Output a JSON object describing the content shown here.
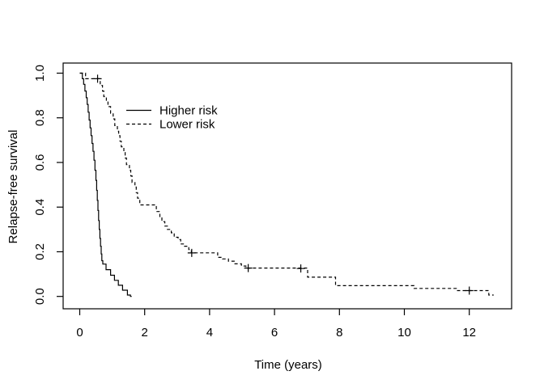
{
  "figure": {
    "background_color": "#ffffff",
    "line_color": "#000000"
  },
  "chart_data": {
    "type": "line",
    "subtype": "kaplan-meier-step-survival",
    "title": "",
    "xlabel": "Time (years)",
    "ylabel": "Relapse-free survival",
    "xlim": [
      0,
      13.3
    ],
    "ylim": [
      0,
      1.0
    ],
    "grid": false,
    "legend_position": "upper-left-inside",
    "x_ticks": {
      "values": [
        0,
        2,
        4,
        6,
        8,
        10,
        12
      ],
      "labels": [
        "0",
        "2",
        "4",
        "6",
        "8",
        "10",
        "12"
      ]
    },
    "y_ticks": {
      "values": [
        0.0,
        0.2,
        0.4,
        0.6,
        0.8,
        1.0
      ],
      "labels": [
        "0.0",
        "0.2",
        "0.4",
        "0.6",
        "0.8",
        "1.0"
      ]
    },
    "series": [
      {
        "name": "Higher risk",
        "line_style": "solid",
        "color": "#000000",
        "points": [
          [
            0,
            1.0
          ],
          [
            0.08,
            0.975
          ],
          [
            0.12,
            0.95
          ],
          [
            0.16,
            0.92
          ],
          [
            0.2,
            0.89
          ],
          [
            0.23,
            0.86
          ],
          [
            0.26,
            0.825
          ],
          [
            0.29,
            0.79
          ],
          [
            0.32,
            0.755
          ],
          [
            0.35,
            0.72
          ],
          [
            0.38,
            0.685
          ],
          [
            0.41,
            0.65
          ],
          [
            0.44,
            0.61
          ],
          [
            0.47,
            0.565
          ],
          [
            0.5,
            0.52
          ],
          [
            0.52,
            0.475
          ],
          [
            0.54,
            0.43
          ],
          [
            0.56,
            0.385
          ],
          [
            0.58,
            0.34
          ],
          [
            0.6,
            0.3
          ],
          [
            0.62,
            0.26
          ],
          [
            0.64,
            0.225
          ],
          [
            0.66,
            0.19
          ],
          [
            0.68,
            0.16
          ],
          [
            0.71,
            0.145
          ],
          [
            0.81,
            0.12
          ],
          [
            0.95,
            0.095
          ],
          [
            1.07,
            0.072
          ],
          [
            1.19,
            0.05
          ],
          [
            1.32,
            0.028
          ],
          [
            1.47,
            0.006
          ],
          [
            1.56,
            0.0
          ],
          [
            1.6,
            0.0
          ]
        ],
        "censor_marks": []
      },
      {
        "name": "Lower risk",
        "line_style": "dashed",
        "color": "#000000",
        "points": [
          [
            0,
            1.0
          ],
          [
            0.18,
            0.975
          ],
          [
            0.63,
            0.945
          ],
          [
            0.7,
            0.92
          ],
          [
            0.74,
            0.895
          ],
          [
            0.82,
            0.875
          ],
          [
            0.87,
            0.85
          ],
          [
            0.95,
            0.82
          ],
          [
            1.03,
            0.795
          ],
          [
            1.08,
            0.765
          ],
          [
            1.16,
            0.74
          ],
          [
            1.2,
            0.72
          ],
          [
            1.24,
            0.695
          ],
          [
            1.28,
            0.67
          ],
          [
            1.36,
            0.645
          ],
          [
            1.4,
            0.62
          ],
          [
            1.44,
            0.59
          ],
          [
            1.53,
            0.565
          ],
          [
            1.57,
            0.54
          ],
          [
            1.61,
            0.51
          ],
          [
            1.7,
            0.49
          ],
          [
            1.74,
            0.465
          ],
          [
            1.78,
            0.44
          ],
          [
            1.85,
            0.41
          ],
          [
            2.36,
            0.38
          ],
          [
            2.47,
            0.355
          ],
          [
            2.53,
            0.335
          ],
          [
            2.62,
            0.315
          ],
          [
            2.7,
            0.3
          ],
          [
            2.82,
            0.285
          ],
          [
            2.91,
            0.265
          ],
          [
            3.03,
            0.255
          ],
          [
            3.11,
            0.235
          ],
          [
            3.23,
            0.225
          ],
          [
            3.36,
            0.21
          ],
          [
            3.44,
            0.195
          ],
          [
            4.25,
            0.175
          ],
          [
            4.4,
            0.168
          ],
          [
            4.58,
            0.158
          ],
          [
            4.78,
            0.146
          ],
          [
            4.98,
            0.136
          ],
          [
            5.12,
            0.127
          ],
          [
            7.02,
            0.086
          ],
          [
            7.88,
            0.048
          ],
          [
            10.3,
            0.036
          ],
          [
            11.6,
            0.026
          ],
          [
            12.6,
            0.006
          ],
          [
            12.75,
            0.006
          ]
        ],
        "censor_marks": [
          [
            0.55,
            0.975
          ],
          [
            3.45,
            0.195
          ],
          [
            5.19,
            0.127
          ],
          [
            6.81,
            0.125
          ],
          [
            12.0,
            0.026
          ]
        ]
      }
    ]
  }
}
